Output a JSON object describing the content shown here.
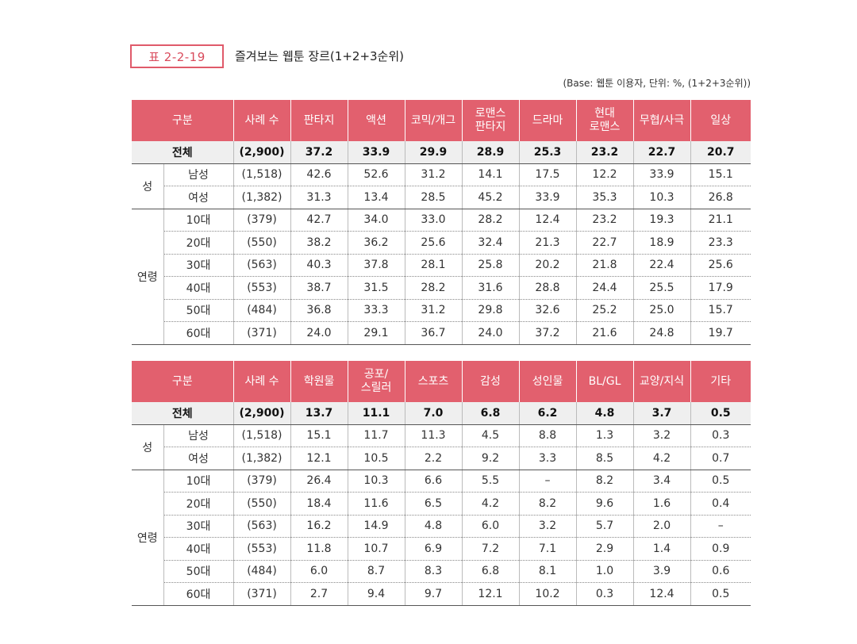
{
  "title_label": "표 2-2-19",
  "title": "즐겨보는 웹툰 장르(1+2+3순위)",
  "note": "(Base: 웹툰 이용자, 단위: %, (1+2+3순위))",
  "tables": [
    {
      "headers": [
        "구분",
        "사례 수",
        "판타지",
        "액션",
        "코믹/개그",
        "로맨스\n판타지",
        "드라마",
        "현대\n로맨스",
        "무협/사극",
        "일상"
      ],
      "total": {
        "label": "전체",
        "n": "(2,900)",
        "values": [
          "37.2",
          "33.9",
          "29.9",
          "28.9",
          "25.3",
          "23.2",
          "22.7",
          "20.7"
        ]
      },
      "groups": [
        {
          "label": "성",
          "rows": [
            {
              "label": "남성",
              "n": "(1,518)",
              "values": [
                "42.6",
                "52.6",
                "31.2",
                "14.1",
                "17.5",
                "12.2",
                "33.9",
                "15.1"
              ]
            },
            {
              "label": "여성",
              "n": "(1,382)",
              "values": [
                "31.3",
                "13.4",
                "28.5",
                "45.2",
                "33.9",
                "35.3",
                "10.3",
                "26.8"
              ]
            }
          ]
        },
        {
          "label": "연령",
          "rows": [
            {
              "label": "10대",
              "n": "(379)",
              "values": [
                "42.7",
                "34.0",
                "33.0",
                "28.2",
                "12.4",
                "23.2",
                "19.3",
                "21.1"
              ]
            },
            {
              "label": "20대",
              "n": "(550)",
              "values": [
                "38.2",
                "36.2",
                "25.6",
                "32.4",
                "21.3",
                "22.7",
                "18.9",
                "23.3"
              ]
            },
            {
              "label": "30대",
              "n": "(563)",
              "values": [
                "40.3",
                "37.8",
                "28.1",
                "25.8",
                "20.2",
                "21.8",
                "22.4",
                "25.6"
              ]
            },
            {
              "label": "40대",
              "n": "(553)",
              "values": [
                "38.7",
                "31.5",
                "28.2",
                "31.6",
                "28.8",
                "24.4",
                "25.5",
                "17.9"
              ]
            },
            {
              "label": "50대",
              "n": "(484)",
              "values": [
                "36.8",
                "33.3",
                "31.2",
                "29.8",
                "32.6",
                "25.2",
                "25.0",
                "15.7"
              ]
            },
            {
              "label": "60대",
              "n": "(371)",
              "values": [
                "24.0",
                "29.1",
                "36.7",
                "24.0",
                "37.2",
                "21.6",
                "24.8",
                "19.7"
              ]
            }
          ]
        }
      ]
    },
    {
      "headers": [
        "구분",
        "사례 수",
        "학원물",
        "공포/\n스릴러",
        "스포츠",
        "감성",
        "성인물",
        "BL/GL",
        "교양/지식",
        "기타"
      ],
      "total": {
        "label": "전체",
        "n": "(2,900)",
        "values": [
          "13.7",
          "11.1",
          "7.0",
          "6.8",
          "6.2",
          "4.8",
          "3.7",
          "0.5"
        ]
      },
      "groups": [
        {
          "label": "성",
          "rows": [
            {
              "label": "남성",
              "n": "(1,518)",
              "values": [
                "15.1",
                "11.7",
                "11.3",
                "4.5",
                "8.8",
                "1.3",
                "3.2",
                "0.3"
              ]
            },
            {
              "label": "여성",
              "n": "(1,382)",
              "values": [
                "12.1",
                "10.5",
                "2.2",
                "9.2",
                "3.3",
                "8.5",
                "4.2",
                "0.7"
              ]
            }
          ]
        },
        {
          "label": "연령",
          "rows": [
            {
              "label": "10대",
              "n": "(379)",
              "values": [
                "26.4",
                "10.3",
                "6.6",
                "5.5",
                "–",
                "8.2",
                "3.4",
                "0.5"
              ]
            },
            {
              "label": "20대",
              "n": "(550)",
              "values": [
                "18.4",
                "11.6",
                "6.5",
                "4.2",
                "8.2",
                "9.6",
                "1.6",
                "0.4"
              ]
            },
            {
              "label": "30대",
              "n": "(563)",
              "values": [
                "16.2",
                "14.9",
                "4.8",
                "6.0",
                "3.2",
                "5.7",
                "2.0",
                "–"
              ]
            },
            {
              "label": "40대",
              "n": "(553)",
              "values": [
                "11.8",
                "10.7",
                "6.9",
                "7.2",
                "7.1",
                "2.9",
                "1.4",
                "0.9"
              ]
            },
            {
              "label": "50대",
              "n": "(484)",
              "values": [
                "6.0",
                "8.7",
                "8.3",
                "6.8",
                "8.1",
                "1.0",
                "3.9",
                "0.6"
              ]
            },
            {
              "label": "60대",
              "n": "(371)",
              "values": [
                "2.7",
                "9.4",
                "9.7",
                "12.1",
                "10.2",
                "0.3",
                "12.4",
                "0.5"
              ]
            }
          ]
        }
      ]
    }
  ]
}
